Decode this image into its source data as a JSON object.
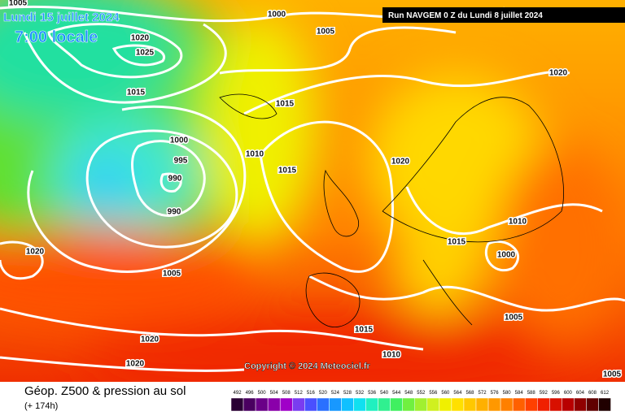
{
  "header": {
    "date": "Lundi 15 juillet 2024",
    "time": "7:00 locale",
    "run": "Run NAVGEM 0 Z du Lundi 8 juillet 2024"
  },
  "copyright": "Copyright © 2024 Meteociel.fr",
  "footer": {
    "title": "Géop. Z500 & pression au sol",
    "lead": "(+ 174h)"
  },
  "isobar_labels": [
    "1005",
    "1000",
    "1005",
    "1020",
    "1025",
    "1015",
    "1015",
    "1000",
    "995",
    "990",
    "1010",
    "1015",
    "990",
    "1020",
    "1020",
    "1020",
    "1005",
    "1010",
    "1015",
    "1000",
    "1005",
    "1015",
    "1005",
    "1020",
    "1010",
    "1020"
  ],
  "colorbar": {
    "ticks": [
      492,
      496,
      500,
      504,
      508,
      512,
      516,
      520,
      524,
      528,
      532,
      536,
      540,
      544,
      548,
      552,
      556,
      560,
      564,
      568,
      572,
      576,
      580,
      584,
      588,
      592,
      596,
      600,
      604,
      608,
      612
    ],
    "colors": [
      "#2a0034",
      "#4a0060",
      "#6a0088",
      "#8a00aa",
      "#a000c8",
      "#7a3cf0",
      "#4a50ff",
      "#2a70ff",
      "#1898ff",
      "#10c0ff",
      "#10e0f0",
      "#20f0c0",
      "#30f090",
      "#40f060",
      "#70f040",
      "#a0f030",
      "#d0f020",
      "#f0f000",
      "#ffe000",
      "#ffc800",
      "#ffb000",
      "#ff9800",
      "#ff8000",
      "#ff6000",
      "#ff4000",
      "#f02000",
      "#d81000",
      "#b80000",
      "#900000",
      "#600000",
      "#200000"
    ]
  }
}
